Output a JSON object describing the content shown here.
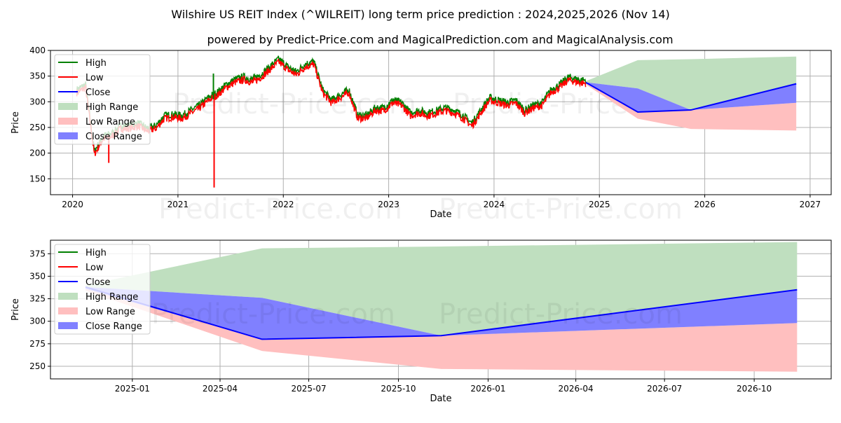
{
  "title": "Wilshire US REIT Index (^WILREIT) long term price prediction : 2024,2025,2026 (Nov 14)",
  "subtitle": "powered by Predict-Price.com and MagicalPrediction.com and MagicalAnalysis.com",
  "watermark": "Predict-Price.com",
  "colors": {
    "high": "#008000",
    "low": "#ff0000",
    "close": "#0000ff",
    "high_range": "#bfdfbf",
    "low_range": "#ffbfbf",
    "close_range": "#8080ff"
  },
  "chart_data": [
    {
      "type": "line",
      "name": "full-history",
      "xlabel": "Date",
      "ylabel": "Price",
      "xlim": [
        2019.79,
        2027.2
      ],
      "ylim": [
        119,
        400
      ],
      "grid": true,
      "legend_placement": "top-left",
      "legend": [
        "High",
        "Low",
        "Close",
        "High Range",
        "Low Range",
        "Close Range"
      ],
      "xticks": [
        "2020",
        "2021",
        "2022",
        "2023",
        "2024",
        "2025",
        "2026",
        "2027"
      ],
      "yticks": [
        150,
        200,
        250,
        300,
        350,
        400
      ],
      "history": {
        "start": "2020-01",
        "frequency": "monthly",
        "close": [
          320,
          330,
          200,
          230,
          235,
          250,
          250,
          255,
          245,
          250,
          270,
          272,
          270,
          280,
          290,
          305,
          315,
          330,
          340,
          345,
          340,
          350,
          365,
          380,
          365,
          355,
          370,
          375,
          320,
          300,
          310,
          320,
          270,
          270,
          285,
          285,
          300,
          295,
          275,
          280,
          275,
          280,
          285,
          280,
          270,
          255,
          280,
          305,
          300,
          295,
          300,
          280,
          290,
          295,
          320,
          330,
          345,
          340,
          338
        ],
        "high_spread": 6,
        "low_spread": 6,
        "extremes": [
          {
            "date": "2020-03",
            "low": 181
          },
          {
            "date": "2021-03",
            "high": 355,
            "low": 133
          }
        ]
      }
    },
    {
      "type": "area",
      "name": "forecast-zoom",
      "xlabel": "Date",
      "ylabel": "Price",
      "xlim": [
        "2024-10-09",
        "2026-12-19"
      ],
      "ylim": [
        236,
        390
      ],
      "grid": true,
      "legend_placement": "top-left",
      "legend": [
        "High",
        "Low",
        "Close",
        "High Range",
        "Low Range",
        "Close Range"
      ],
      "xticks": [
        "2025-01",
        "2025-04",
        "2025-07",
        "2025-10",
        "2026-01",
        "2026-04",
        "2026-07",
        "2026-10"
      ],
      "yticks": [
        250,
        275,
        300,
        325,
        350,
        375
      ]
    }
  ],
  "forecast": {
    "dates": [
      "2024-11-14",
      "2025-05-14",
      "2025-11-14",
      "2026-11-14"
    ],
    "close": [
      338,
      280,
      284,
      335
    ],
    "high_range": {
      "upper": [
        340,
        381,
        383,
        388
      ],
      "lower": [
        338,
        326,
        284,
        335
      ]
    },
    "close_range": {
      "upper": [
        338,
        326,
        284,
        335
      ],
      "lower": [
        336,
        280,
        284,
        298
      ]
    },
    "low_range": {
      "upper": [
        336,
        280,
        284,
        298
      ],
      "lower": [
        334,
        267,
        247,
        244
      ]
    }
  }
}
